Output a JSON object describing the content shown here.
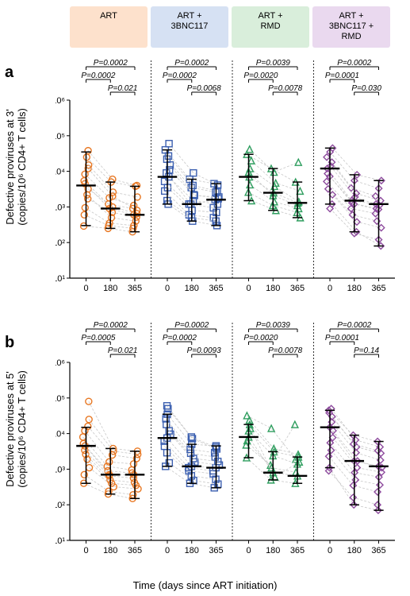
{
  "figure_width": 517,
  "figure_height": 750,
  "arms": [
    {
      "key": "art",
      "label": "ART",
      "bg": "#fde1cc",
      "color": "#e87722",
      "marker": "circle"
    },
    {
      "key": "bnc",
      "label": "ART +\n3BNC117",
      "bg": "#d6e1f3",
      "color": "#3b5fb0",
      "marker": "square"
    },
    {
      "key": "rmd",
      "label": "ART +\nRMD",
      "bg": "#d9eedb",
      "color": "#2f9e5f",
      "marker": "triangle"
    },
    {
      "key": "combo",
      "label": "ART +\n3BNC117 +\nRMD",
      "bg": "#ead9ef",
      "color": "#8e4c9e",
      "marker": "diamond"
    }
  ],
  "yaxis": {
    "type": "log",
    "lim": [
      10,
      1000000
    ],
    "ticks": [
      10,
      100,
      1000,
      10000,
      100000,
      1000000
    ],
    "ticklabels": [
      "10¹",
      "10²",
      "10³",
      "10⁴",
      "10⁵",
      "10⁶"
    ],
    "fontsize": 11
  },
  "xaxis": {
    "ticks": [
      0,
      180,
      365
    ],
    "ticklabels": [
      "0",
      "180",
      "365"
    ],
    "label": "Time (days since ART initiation)",
    "fontsize": 11
  },
  "panels": {
    "a": {
      "row_label": "a",
      "ylabel": "Defective proviruses at 3'\n(copies/10⁶ CD4+ T cells)",
      "pvals": {
        "art": {
          "0_365": "P=0.0002",
          "0_180": "P=0.0002",
          "180_365": "P=0.021"
        },
        "bnc": {
          "0_365": "P=0.0002",
          "0_180": "P=0.0002",
          "180_365": "P=0.0068"
        },
        "rmd": {
          "0_365": "P=0.0039",
          "0_180": "P=0.0020",
          "180_365": "P=0.0078"
        },
        "combo": {
          "0_365": "P=0.0002",
          "0_180": "P=0.0001",
          "180_365": "P=0.030"
        }
      },
      "medians": {
        "art": {
          "0": [
            300,
            4000,
            35000
          ],
          "180": [
            250,
            900,
            5000
          ],
          "365": [
            200,
            600,
            3800
          ]
        },
        "bnc": {
          "0": [
            1200,
            7000,
            40000
          ],
          "180": [
            400,
            1200,
            6000
          ],
          "365": [
            300,
            1600,
            4500
          ]
        },
        "rmd": {
          "0": [
            1500,
            7000,
            30000
          ],
          "180": [
            800,
            2500,
            12000
          ],
          "365": [
            500,
            1300,
            5000
          ]
        },
        "combo": {
          "0": [
            1200,
            12000,
            45000
          ],
          "180": [
            200,
            1500,
            8000
          ],
          "365": [
            80,
            1200,
            5500
          ]
        }
      },
      "data": {
        "art": [
          [
            4500,
            900,
            600
          ],
          [
            12000,
            2000,
            800
          ],
          [
            38000,
            6000,
            4000
          ],
          [
            290,
            250,
            200
          ],
          [
            2200,
            500,
            400
          ],
          [
            950,
            350,
            300
          ],
          [
            8300,
            1800,
            1100
          ],
          [
            25000,
            5000,
            3800
          ],
          [
            600,
            300,
            250
          ],
          [
            15000,
            2600,
            1900
          ],
          [
            5400,
            1200,
            900
          ],
          [
            1700,
            700,
            520
          ],
          [
            3200,
            1000,
            650
          ]
        ],
        "bnc": [
          [
            9000,
            1200,
            1600
          ],
          [
            40000,
            6000,
            4500
          ],
          [
            2800,
            600,
            500
          ],
          [
            1200,
            400,
            300
          ],
          [
            7000,
            1500,
            1200
          ],
          [
            22000,
            3500,
            2600
          ],
          [
            15000,
            2100,
            1900
          ],
          [
            60000,
            9000,
            4100
          ],
          [
            3500,
            800,
            700
          ],
          [
            1500,
            500,
            400
          ],
          [
            5200,
            1200,
            950
          ],
          [
            11000,
            2200,
            1700
          ],
          [
            27000,
            4000,
            2800
          ]
        ],
        "rmd": [
          [
            30000,
            12000,
            5000
          ],
          [
            7000,
            2500,
            1300
          ],
          [
            1500,
            800,
            500
          ],
          [
            4200,
            1400,
            900
          ],
          [
            12000,
            3800,
            1400
          ],
          [
            20000,
            4700,
            2800
          ],
          [
            9500,
            2100,
            1100
          ],
          [
            2600,
            1100,
            700
          ],
          [
            42000,
            9500,
            18000
          ]
        ],
        "combo": [
          [
            45000,
            8000,
            5500
          ],
          [
            1200,
            200,
            80
          ],
          [
            12000,
            1500,
            1200
          ],
          [
            25000,
            3400,
            2000
          ],
          [
            3200,
            600,
            400
          ],
          [
            7200,
            1200,
            850
          ],
          [
            18000,
            2400,
            1500
          ],
          [
            35000,
            5500,
            3300
          ],
          [
            900,
            180,
            120
          ],
          [
            5200,
            900,
            650
          ],
          [
            14000,
            1900,
            1100
          ],
          [
            2200,
            380,
            260
          ],
          [
            8600,
            1300,
            900
          ]
        ]
      }
    },
    "b": {
      "row_label": "b",
      "ylabel": "Defective proviruses at 5'\n(copies/10⁶ CD4+ T cells)",
      "pvals": {
        "art": {
          "0_365": "P=0.0002",
          "0_180": "P=0.0005",
          "180_365": "P=0.021"
        },
        "bnc": {
          "0_365": "P=0.0002",
          "0_180": "P=0.0002",
          "180_365": "P=0.0093"
        },
        "rmd": {
          "0_365": "P=0.0039",
          "0_180": "P=0.0020",
          "180_365": "P=0.0078"
        },
        "combo": {
          "0_365": "P=0.0002",
          "0_180": "P=0.0001",
          "180_365": "P=0.14"
        }
      },
      "medians": {
        "art": {
          "0": [
            400,
            4500,
            15000
          ],
          "180": [
            200,
            700,
            3800
          ],
          "365": [
            150,
            700,
            3200
          ]
        },
        "bnc": {
          "0": [
            1200,
            7500,
            35000
          ],
          "180": [
            400,
            1200,
            5000
          ],
          "365": [
            300,
            1100,
            4500
          ]
        },
        "rmd": {
          "0": [
            2100,
            8000,
            18000
          ],
          "180": [
            500,
            800,
            3100
          ],
          "365": [
            400,
            650,
            2200
          ]
        },
        "combo": {
          "0": [
            1100,
            15000,
            45000
          ],
          "180": [
            100,
            1700,
            9000
          ],
          "365": [
            70,
            1200,
            6000
          ]
        }
      },
      "data": {
        "art": [
          [
            80000,
            3800,
            3200
          ],
          [
            4500,
            700,
            700
          ],
          [
            400,
            200,
            150
          ],
          [
            12000,
            1600,
            1400
          ],
          [
            2600,
            500,
            420
          ],
          [
            8000,
            1200,
            950
          ],
          [
            1100,
            320,
            280
          ],
          [
            25000,
            3200,
            2600
          ],
          [
            700,
            240,
            190
          ],
          [
            16000,
            2500,
            2000
          ],
          [
            5200,
            900,
            780
          ],
          [
            1900,
            400,
            350
          ],
          [
            3400,
            650,
            560
          ]
        ],
        "bnc": [
          [
            35000,
            5000,
            4500
          ],
          [
            7500,
            1200,
            1100
          ],
          [
            1200,
            400,
            300
          ],
          [
            50000,
            7200,
            3700
          ],
          [
            2900,
            650,
            520
          ],
          [
            18000,
            2800,
            2200
          ],
          [
            9600,
            1600,
            1300
          ],
          [
            4400,
            900,
            740
          ],
          [
            60000,
            8000,
            4100
          ],
          [
            1500,
            480,
            380
          ],
          [
            12000,
            2000,
            1650
          ],
          [
            26000,
            3600,
            2900
          ],
          [
            6100,
            1100,
            900
          ]
        ],
        "rmd": [
          [
            18000,
            3100,
            2200
          ],
          [
            8000,
            800,
            650
          ],
          [
            2100,
            500,
            400
          ],
          [
            32000,
            14000,
            1900
          ],
          [
            4800,
            1300,
            18000
          ],
          [
            12000,
            2400,
            1400
          ],
          [
            6300,
            1100,
            820
          ],
          [
            24000,
            3800,
            2600
          ],
          [
            14000,
            600,
            1600
          ]
        ],
        "combo": [
          [
            45000,
            9000,
            6000
          ],
          [
            15000,
            1700,
            1200
          ],
          [
            1100,
            100,
            70
          ],
          [
            30000,
            4200,
            2800
          ],
          [
            3400,
            500,
            360
          ],
          [
            7700,
            1100,
            820
          ],
          [
            21000,
            2900,
            1800
          ],
          [
            50000,
            6600,
            4200
          ],
          [
            900,
            160,
            100
          ],
          [
            5500,
            800,
            600
          ],
          [
            12000,
            1700,
            1100
          ],
          [
            2300,
            350,
            230
          ],
          [
            38000,
            5100,
            3300
          ]
        ]
      }
    }
  },
  "style": {
    "marker_size": 8,
    "marker_stroke": 1.4,
    "line_color": "#c8c8c8",
    "median_color": "#000000",
    "median_stroke": 2.4,
    "iqr_stroke": 1.5,
    "axis_color": "#000000",
    "p_fontsize": 10,
    "p_style": "italic",
    "panel_gap": 6,
    "row_label_fontsize": 20
  }
}
